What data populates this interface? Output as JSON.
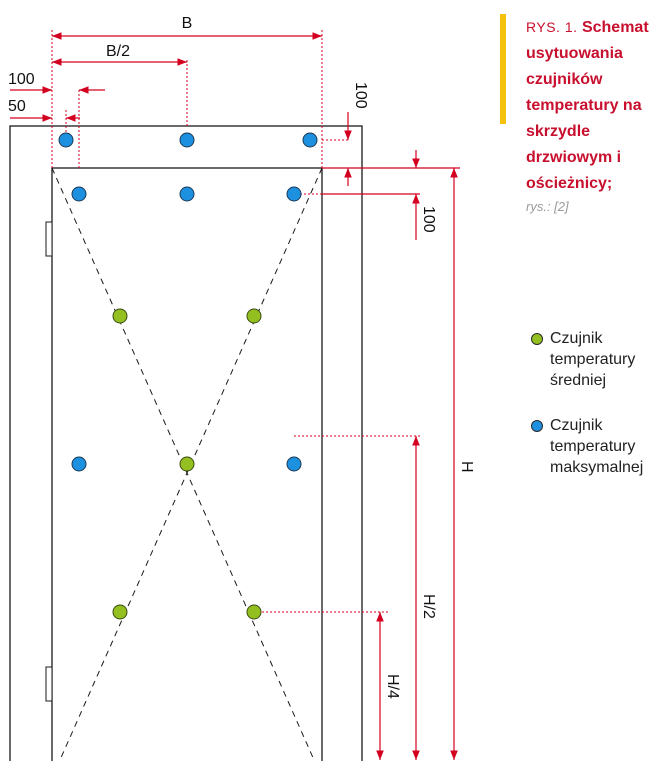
{
  "caption": {
    "label": "RYS. 1.",
    "title": "Schemat usytuowania czujników temperatury na skrzydle drzwiowym i ościeżnicy;",
    "source": "rys.: [2]"
  },
  "legend": [
    {
      "label": "Czujnik temperatury średniej",
      "color": "#93c020"
    },
    {
      "label": "Czujnik temperatury maksymalnej",
      "color": "#1e90e0"
    }
  ],
  "dimensions": {
    "B": "B",
    "B_half": "B/2",
    "d100_left": "100",
    "d50_left": "50",
    "d100_right_top": "100",
    "d100_right_lower": "100",
    "H": "H",
    "H_half": "H/2",
    "H_quarter": "H/4"
  },
  "colors": {
    "dimension_line": "#d4001f",
    "frame": "#1a1a1a",
    "caption_accent": "#f4c20d",
    "caption_text": "#c8102e"
  }
}
